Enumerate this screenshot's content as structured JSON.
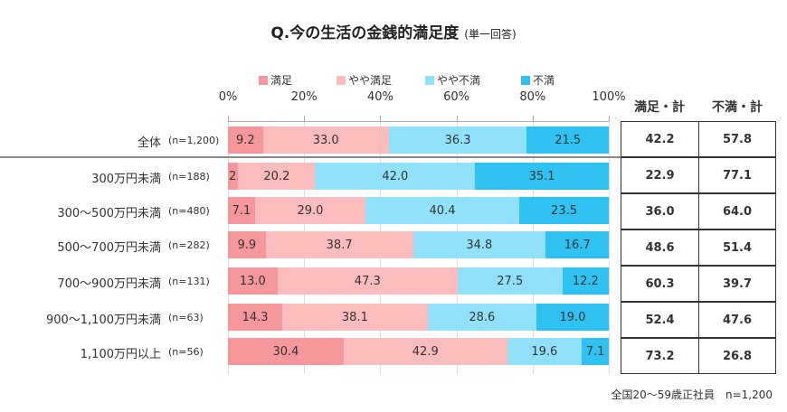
{
  "chart_data": {
    "type": "bar",
    "orientation": "horizontal-stacked-100",
    "title": "Q.今の生活の金銭的満足度",
    "subtitle": "(単一回答)",
    "xlim": [
      0,
      100
    ],
    "xticks": [
      "0%",
      "20%",
      "40%",
      "60%",
      "80%",
      "100%"
    ],
    "legend_position": "top",
    "series": [
      {
        "name": "満足",
        "color": "#f5979b",
        "values": [
          9.2,
          2.7,
          7.1,
          9.9,
          13.0,
          14.3,
          30.4
        ]
      },
      {
        "name": "やや満足",
        "color": "#fbbcbe",
        "values": [
          33.0,
          20.2,
          29.0,
          38.7,
          47.3,
          38.1,
          42.9
        ]
      },
      {
        "name": "やや不満",
        "color": "#91e1fb",
        "values": [
          36.3,
          42.0,
          40.4,
          34.8,
          27.5,
          28.6,
          19.6
        ]
      },
      {
        "name": "不満",
        "color": "#2fc1f1",
        "values": [
          21.5,
          35.1,
          23.5,
          16.7,
          12.2,
          19.0,
          7.1
        ]
      }
    ],
    "categories": [
      "全体",
      "300万円未満",
      "300～500万円未満",
      "500～700万円未満",
      "700～900万円未満",
      "900～1,100万円未満",
      "1,100万円以上"
    ],
    "n_labels": [
      "(n=1,200)",
      "(n=188)",
      "(n=480)",
      "(n=282)",
      "(n=131)",
      "(n=63)",
      "(n=56)"
    ],
    "table": {
      "headers": [
        "満足・計",
        "不満・計"
      ],
      "rows": [
        [
          "42.2",
          "57.8"
        ],
        [
          "22.9",
          "77.1"
        ],
        [
          "36.0",
          "64.0"
        ],
        [
          "48.6",
          "51.4"
        ],
        [
          "60.3",
          "39.7"
        ],
        [
          "52.4",
          "47.6"
        ],
        [
          "73.2",
          "26.8"
        ]
      ]
    },
    "footnote": "全国20～59歳正社員　n=1,200"
  }
}
